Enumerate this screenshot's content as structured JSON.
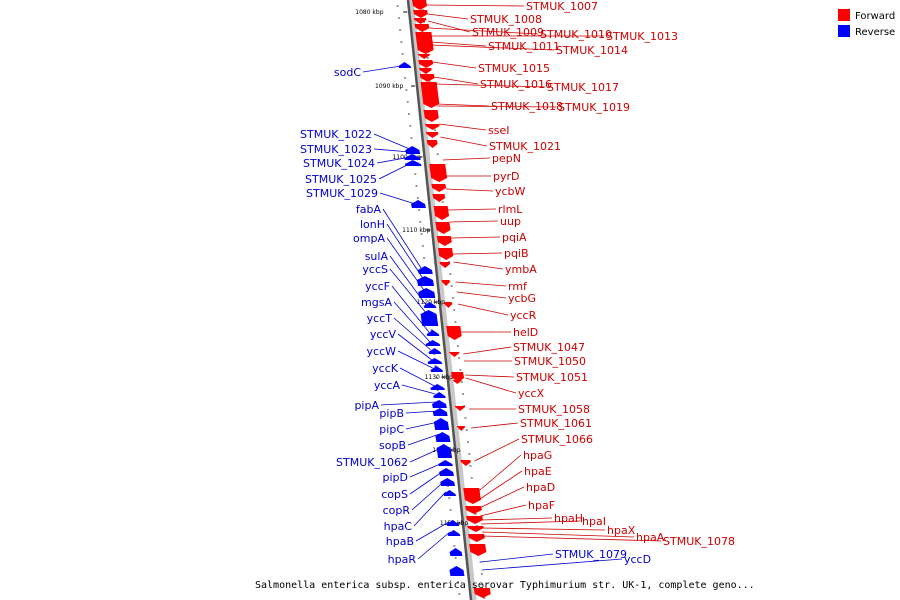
{
  "legend": {
    "forward_label": "Forward",
    "reverse_label": "Reverse",
    "forward_color": "#ff0000",
    "reverse_color": "#0000ff"
  },
  "genome_title": "Salmonella enterica subsp. enterica serovar Typhimurium str. UK-1, complete geno...",
  "ticks": [
    "1080 kbp",
    "1090 kbp",
    "1100 kbp",
    "1110 kbp",
    "1120 kbp",
    "1130 kbp",
    "1140 kbp",
    "1150 kbp"
  ],
  "forward_genes": [
    "STMUK_1007",
    "STMUK_1008",
    "STMUK_1009",
    "STMUK_1010",
    "STMUK_1013",
    "STMUK_1011",
    "STMUK_1014",
    "STMUK_1015",
    "STMUK_1016",
    "STMUK_1017",
    "STMUK_1018",
    "STMUK_1019",
    "sseI",
    "STMUK_1021",
    "pepN",
    "pyrD",
    "ycbW",
    "rlmL",
    "uup",
    "pqiA",
    "pqiB",
    "ymbA",
    "rmf",
    "ycbG",
    "yccR",
    "helD",
    "STMUK_1047",
    "STMUK_1050",
    "STMUK_1051",
    "yccX",
    "STMUK_1058",
    "STMUK_1061",
    "STMUK_1066",
    "hpaG",
    "hpaE",
    "hpaD",
    "hpaF",
    "hpaH",
    "hpaI",
    "hpaX",
    "hpaA",
    "STMUK_1078"
  ],
  "reverse_genes": [
    "sodC",
    "STMUK_1022",
    "STMUK_1023",
    "STMUK_1024",
    "STMUK_1025",
    "STMUK_1029",
    "fabA",
    "lonH",
    "ompA",
    "sulA",
    "yccS",
    "yccF",
    "mgsA",
    "yccT",
    "yccV",
    "yccW",
    "yccK",
    "yccA",
    "pipA",
    "pipB",
    "pipC",
    "sopB",
    "STMUK_1062",
    "pipD",
    "copS",
    "copR",
    "hpaC",
    "hpaB",
    "hpaR",
    "STMUK_1079",
    "yccD"
  ]
}
